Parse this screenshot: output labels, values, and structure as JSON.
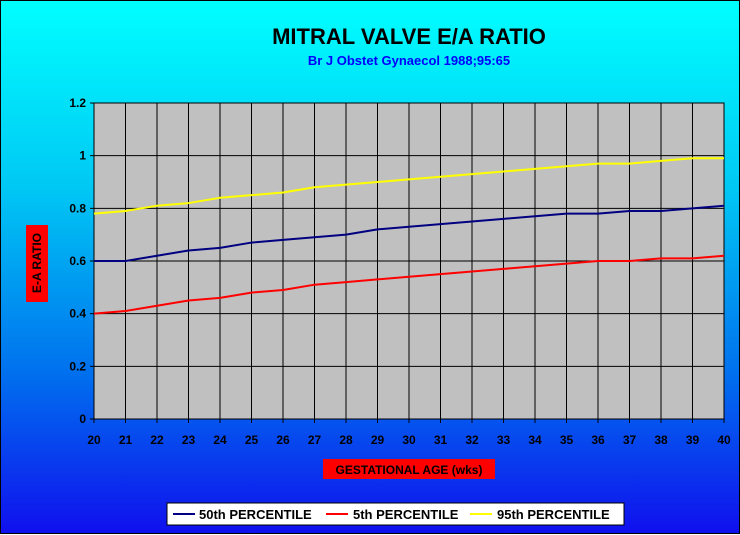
{
  "chart_data": {
    "type": "line",
    "title": "MITRAL VALVE E/A RATIO",
    "subtitle": "Br J Obstet Gynaecol 1988;95:65",
    "xlabel": "GESTATIONAL AGE (wks)",
    "ylabel": "E-A RATIO",
    "x": [
      20,
      21,
      22,
      23,
      24,
      25,
      26,
      27,
      28,
      29,
      30,
      31,
      32,
      33,
      34,
      35,
      36,
      37,
      38,
      39,
      40
    ],
    "xlim": [
      20,
      40
    ],
    "ylim": [
      0,
      1.2
    ],
    "yticks": [
      0,
      0.2,
      0.4,
      0.6,
      0.8,
      1,
      1.2
    ],
    "yticklabels": [
      "0",
      "0.2",
      "0.4",
      "0.6",
      "0.8",
      "1",
      "1.2"
    ],
    "grid": true,
    "legend_position": "bottom",
    "plot_background": "#c0c0c0",
    "series": [
      {
        "name": "50th PERCENTILE",
        "color": "#000080",
        "values": [
          0.6,
          0.6,
          0.62,
          0.64,
          0.65,
          0.67,
          0.68,
          0.69,
          0.7,
          0.72,
          0.73,
          0.74,
          0.75,
          0.76,
          0.77,
          0.78,
          0.78,
          0.79,
          0.79,
          0.8,
          0.81
        ]
      },
      {
        "name": "5th PERCENTILE",
        "color": "#ff0000",
        "values": [
          0.4,
          0.41,
          0.43,
          0.45,
          0.46,
          0.48,
          0.49,
          0.51,
          0.52,
          0.53,
          0.54,
          0.55,
          0.56,
          0.57,
          0.58,
          0.59,
          0.6,
          0.6,
          0.61,
          0.61,
          0.62
        ]
      },
      {
        "name": "95th PERCENTILE",
        "color": "#ffff00",
        "values": [
          0.78,
          0.79,
          0.81,
          0.82,
          0.84,
          0.85,
          0.86,
          0.88,
          0.89,
          0.9,
          0.91,
          0.92,
          0.93,
          0.94,
          0.95,
          0.96,
          0.97,
          0.97,
          0.98,
          0.99,
          0.99
        ]
      }
    ]
  },
  "colors": {
    "title_text": "#000000",
    "subtitle_text": "#0000ff",
    "label_box": "#ff0000"
  }
}
